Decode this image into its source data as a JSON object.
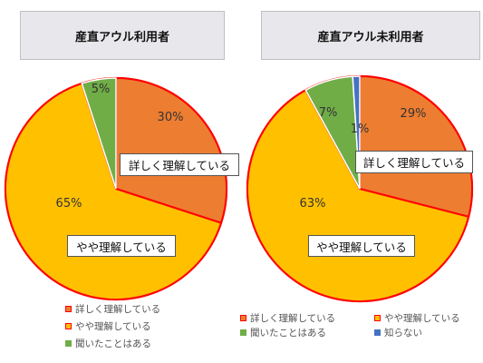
{
  "chart_data": [
    {
      "type": "pie",
      "title": "産直アウル利用者",
      "slices": [
        {
          "label": "詳しく理解している",
          "value": 30,
          "display": "30%",
          "color": "#ed7d31"
        },
        {
          "label": "やや理解している",
          "value": 65,
          "display": "65%",
          "color": "#ffc000"
        },
        {
          "label": "聞いたことはある",
          "value": 5,
          "display": "5%",
          "color": "#70ad47"
        }
      ],
      "callouts": [
        "詳しく理解している",
        "やや理解している"
      ],
      "legend": [
        "詳しく理解している",
        "やや理解している",
        "聞いたことはある"
      ],
      "legend_placement": "bottom"
    },
    {
      "type": "pie",
      "title": "産直アウル未利用者",
      "slices": [
        {
          "label": "詳しく理解している",
          "value": 29,
          "display": "29%",
          "color": "#ed7d31"
        },
        {
          "label": "やや理解している",
          "value": 63,
          "display": "63%",
          "color": "#ffc000"
        },
        {
          "label": "聞いたことはある",
          "value": 7,
          "display": "7%",
          "color": "#70ad47"
        },
        {
          "label": "知らない",
          "value": 1,
          "display": "1%",
          "color": "#4472c4"
        }
      ],
      "callouts": [
        "詳しく理解している",
        "やや理解している"
      ],
      "legend": [
        "詳しく理解している",
        "やや理解している",
        "聞いたことはある",
        "知らない"
      ],
      "legend_placement": "bottom"
    }
  ],
  "colors": {
    "highlight_border": "#ff0000",
    "slice_border": "#ffffff"
  }
}
